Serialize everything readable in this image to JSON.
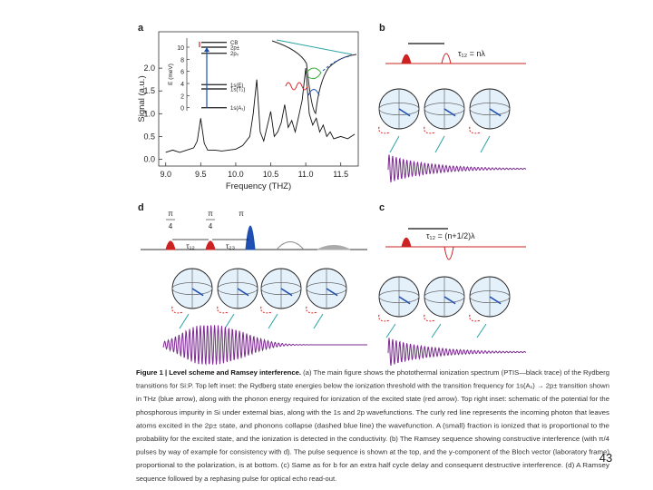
{
  "figure": {
    "panels": {
      "a": {
        "label": "a",
        "xlabel": "Frequency (THZ)",
        "ylabel": "Signal (a.u.)",
        "xlim": [
          8.9,
          11.75
        ],
        "ylim": [
          -0.15,
          2.8
        ],
        "xticks": [
          {
            "value": 9,
            "label": "9.0"
          },
          9.5,
          {
            "value": 10,
            "label": "10.0"
          },
          10.5,
          {
            "value": 11,
            "label": "11.0"
          },
          11.5
        ],
        "yticks": [
          {
            "value": 0,
            "label": "0.0"
          },
          0.5,
          {
            "value": 1,
            "label": "1.0"
          },
          1.5,
          {
            "value": 2,
            "label": "2.0"
          }
        ],
        "spectrum": {
          "x": [
            9.0,
            9.1,
            9.2,
            9.3,
            9.4,
            9.45,
            9.5,
            9.55,
            9.6,
            9.7,
            9.8,
            9.9,
            10.0,
            10.1,
            10.2,
            10.25,
            10.3,
            10.35,
            10.4,
            10.5,
            10.55,
            10.6,
            10.65,
            10.7,
            10.75,
            10.8,
            10.85,
            10.9,
            10.95,
            11.0,
            11.05,
            11.1,
            11.15,
            11.2,
            11.25,
            11.3,
            11.35,
            11.4,
            11.5,
            11.6,
            11.7
          ],
          "values": [
            0.15,
            0.2,
            0.15,
            0.2,
            0.25,
            0.4,
            0.9,
            0.35,
            0.2,
            0.2,
            0.18,
            0.2,
            0.22,
            0.3,
            0.5,
            1.0,
            1.75,
            0.6,
            0.4,
            1.05,
            0.5,
            0.6,
            0.8,
            1.2,
            0.7,
            0.85,
            0.6,
            0.95,
            1.3,
            2.0,
            1.0,
            0.75,
            0.9,
            0.6,
            0.75,
            0.5,
            0.6,
            0.45,
            0.5,
            0.45,
            0.55
          ]
        },
        "inset": {
          "ylabel": "E (meV)",
          "ylim": [
            -0.5,
            11.5
          ],
          "yticks": [
            10,
            8,
            6,
            4,
            2,
            0
          ],
          "levels": [
            {
              "label": "CB",
              "value": 10.8
            },
            {
              "label": "2p±",
              "value": 10.0
            },
            {
              "label": "2p₀",
              "value": 9.0
            },
            {
              "label": "1s(E)",
              "value": 3.8
            },
            {
              "label": "1s(T₂)",
              "value": 3.1
            },
            {
              "label": "1s(A₁)",
              "value": 0
            }
          ]
        }
      },
      "b": {
        "label": "b",
        "delay": "τ₁₂ = nλ"
      },
      "c": {
        "label": "c",
        "delay": "τ₁₂ = (n+1/2)λ"
      },
      "d": {
        "label": "d",
        "pulses": [
          {
            "numerator": "π",
            "denominator": "4"
          },
          {
            "numerator": "π",
            "denominator": "4"
          },
          {
            "numerator": "π"
          }
        ],
        "delays": [
          "τ₁₂",
          "τ₂₃"
        ]
      }
    },
    "caption": {
      "title": "Figure 1 | Level scheme and Ramsey interference.",
      "lines": [
        " (a) The main figure shows the photothermal ionization spectrum (PTIS—black trace) of the Rydberg",
        "transitions for Si:P. Top left inset: the Rydberg state energies below the ionization threshold with the transition frequency for 1s(A₁) → 2p± transition shown",
        "in THz (blue arrow), along with the phonon energy required for ionization of the excited state (red arrow). Top right inset: schematic of the potential for the",
        "phosphorous impurity in Si under external bias, along with the 1s and 2p wavefunctions. The curly red line represents the incoming photon that leaves",
        "atoms excited in the 2p± state, and phonons collapse (dashed blue line) the wavefunction. A (small) fraction is ionized that is proportional to the",
        "probability for the excited state, and the ionization is detected in the conductivity. (b) The Ramsey sequence showing constructive interference (with π/4",
        "pulses by way of example for consistency with d). The pulse sequence is shown at the top, and the y-component of the Bloch vector (laboratory frame)",
        "proportional to the polarization, is at bottom. (c) Same as for b for an extra half cycle delay and consequent destructive interference. (d) A Ramsey",
        "sequence followed by a rephasing pulse for optical echo read-out."
      ]
    }
  },
  "page_number": "43"
}
